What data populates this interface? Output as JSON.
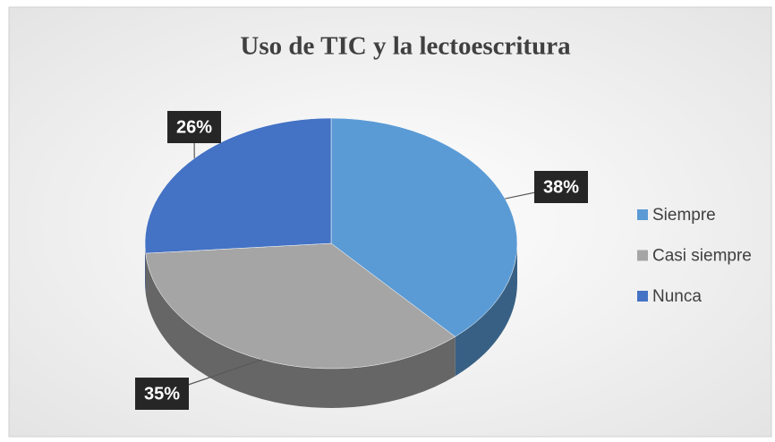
{
  "chart_data": {
    "type": "pie",
    "title": "Uso de TIC y la lectoescritura",
    "categories": [
      "Siempre",
      "Casi siempre",
      "Nunca"
    ],
    "values": [
      38,
      35,
      26
    ],
    "value_labels": [
      "38%",
      "35%",
      "26%"
    ],
    "colors": [
      "#5b9bd5",
      "#a5a5a5",
      "#4472c4"
    ],
    "legend": "right"
  }
}
